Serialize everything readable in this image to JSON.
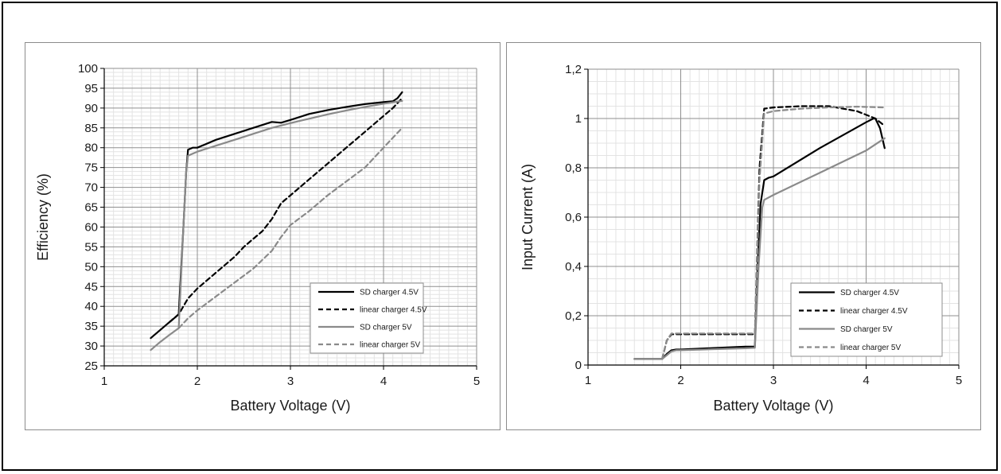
{
  "chart_data": [
    {
      "type": "line",
      "xlabel": "Battery Voltage (V)",
      "ylabel": "Efficiency (%)",
      "xlim": [
        1,
        5
      ],
      "ylim": [
        25,
        100
      ],
      "x_ticks": [
        "1",
        "2",
        "3",
        "4",
        "5"
      ],
      "y_ticks": [
        "25",
        "30",
        "35",
        "40",
        "45",
        "50",
        "55",
        "60",
        "65",
        "70",
        "75",
        "80",
        "85",
        "90",
        "95",
        "100"
      ],
      "grid": true,
      "legend_position": "bottom-right",
      "series": [
        {
          "name": "SD charger 4.5V",
          "color": "#000000",
          "dash": "solid",
          "x": [
            1.5,
            1.6,
            1.7,
            1.75,
            1.8,
            1.85,
            1.88,
            1.9,
            1.95,
            2.0,
            2.2,
            2.4,
            2.6,
            2.8,
            2.9,
            3.0,
            3.2,
            3.4,
            3.6,
            3.8,
            4.0,
            4.1,
            4.15,
            4.2
          ],
          "y": [
            32,
            34,
            36,
            37,
            38,
            60,
            74,
            79.5,
            80,
            80,
            82,
            83.5,
            85,
            86.5,
            86.3,
            87,
            88.5,
            89.5,
            90.3,
            91,
            91.5,
            91.7,
            92.5,
            94
          ]
        },
        {
          "name": "linear charger 4.5V",
          "color": "#000000",
          "dash": "dashed",
          "x": [
            1.7,
            1.8,
            1.9,
            2.0,
            2.2,
            2.4,
            2.5,
            2.6,
            2.7,
            2.8,
            2.9,
            3.0,
            3.2,
            3.4,
            3.6,
            3.8,
            4.0,
            4.1,
            4.2
          ],
          "y": [
            36,
            38,
            42,
            44.5,
            48.5,
            52.5,
            55,
            57,
            59,
            62,
            66,
            68,
            72,
            76,
            80,
            84,
            88,
            90,
            92.5
          ]
        },
        {
          "name": "SD charger 5V",
          "color": "#8a8a8a",
          "dash": "solid",
          "x": [
            1.5,
            1.6,
            1.7,
            1.8,
            1.85,
            1.88,
            1.9,
            2.0,
            2.2,
            2.4,
            2.6,
            2.8,
            3.0,
            3.2,
            3.4,
            3.6,
            3.8,
            4.0,
            4.2
          ],
          "y": [
            29,
            31,
            32.8,
            34.5,
            60,
            74,
            78,
            79,
            80.5,
            82,
            83.5,
            85,
            86.2,
            87.3,
            88.4,
            89.4,
            90.3,
            91.1,
            91.8
          ]
        },
        {
          "name": "linear charger 5V",
          "color": "#8a8a8a",
          "dash": "dashed",
          "x": [
            1.8,
            1.9,
            2.0,
            2.2,
            2.4,
            2.6,
            2.8,
            2.9,
            3.0,
            3.2,
            3.4,
            3.6,
            3.8,
            4.0,
            4.2
          ],
          "y": [
            34.5,
            37,
            39,
            42.5,
            46,
            49.5,
            54,
            57.5,
            60.5,
            64,
            68,
            71.5,
            75,
            80,
            85
          ]
        }
      ]
    },
    {
      "type": "line",
      "xlabel": "Battery Voltage (V)",
      "ylabel": "Input Current (A)",
      "xlim": [
        1,
        5
      ],
      "ylim": [
        0,
        1.2
      ],
      "x_ticks": [
        "1",
        "2",
        "3",
        "4",
        "5"
      ],
      "y_ticks": [
        "0",
        "0,2",
        "0,4",
        "0,6",
        "0,8",
        "1",
        "1,2"
      ],
      "grid": true,
      "legend_position": "bottom-right",
      "series": [
        {
          "name": "SD charger 4.5V",
          "color": "#000000",
          "dash": "solid",
          "x": [
            1.5,
            1.7,
            1.8,
            1.85,
            1.9,
            1.95,
            2.0,
            2.4,
            2.7,
            2.8,
            2.83,
            2.86,
            2.9,
            2.95,
            3.0,
            3.5,
            4.0,
            4.08,
            4.1,
            4.15,
            4.2
          ],
          "y": [
            0.025,
            0.025,
            0.025,
            0.045,
            0.06,
            0.063,
            0.063,
            0.07,
            0.075,
            0.075,
            0.4,
            0.65,
            0.75,
            0.76,
            0.765,
            0.88,
            0.985,
            1.0,
            1.0,
            0.96,
            0.88
          ]
        },
        {
          "name": "linear charger 4.5V",
          "color": "#000000",
          "dash": "dashed",
          "x": [
            1.8,
            1.85,
            1.9,
            2.0,
            2.4,
            2.8,
            2.85,
            2.9,
            3.0,
            3.3,
            3.6,
            3.9,
            4.1,
            4.2
          ],
          "y": [
            0.025,
            0.1,
            0.125,
            0.125,
            0.125,
            0.125,
            0.8,
            1.04,
            1.045,
            1.05,
            1.05,
            1.03,
            1.0,
            0.97
          ]
        },
        {
          "name": "SD charger 5V",
          "color": "#8a8a8a",
          "dash": "solid",
          "x": [
            1.5,
            1.7,
            1.8,
            1.85,
            1.9,
            1.95,
            2.0,
            2.4,
            2.7,
            2.8,
            2.84,
            2.88,
            2.9,
            3.0,
            3.5,
            4.0,
            4.2
          ],
          "y": [
            0.025,
            0.025,
            0.025,
            0.04,
            0.055,
            0.06,
            0.06,
            0.065,
            0.068,
            0.07,
            0.4,
            0.64,
            0.67,
            0.69,
            0.78,
            0.87,
            0.92
          ]
        },
        {
          "name": "linear charger 5V",
          "color": "#8a8a8a",
          "dash": "dashed",
          "x": [
            1.8,
            1.85,
            1.9,
            2.0,
            2.4,
            2.8,
            2.85,
            2.9,
            3.0,
            3.3,
            3.6,
            3.9,
            4.2
          ],
          "y": [
            0.025,
            0.1,
            0.128,
            0.128,
            0.128,
            0.128,
            0.75,
            1.02,
            1.03,
            1.04,
            1.045,
            1.048,
            1.045
          ]
        }
      ]
    }
  ]
}
